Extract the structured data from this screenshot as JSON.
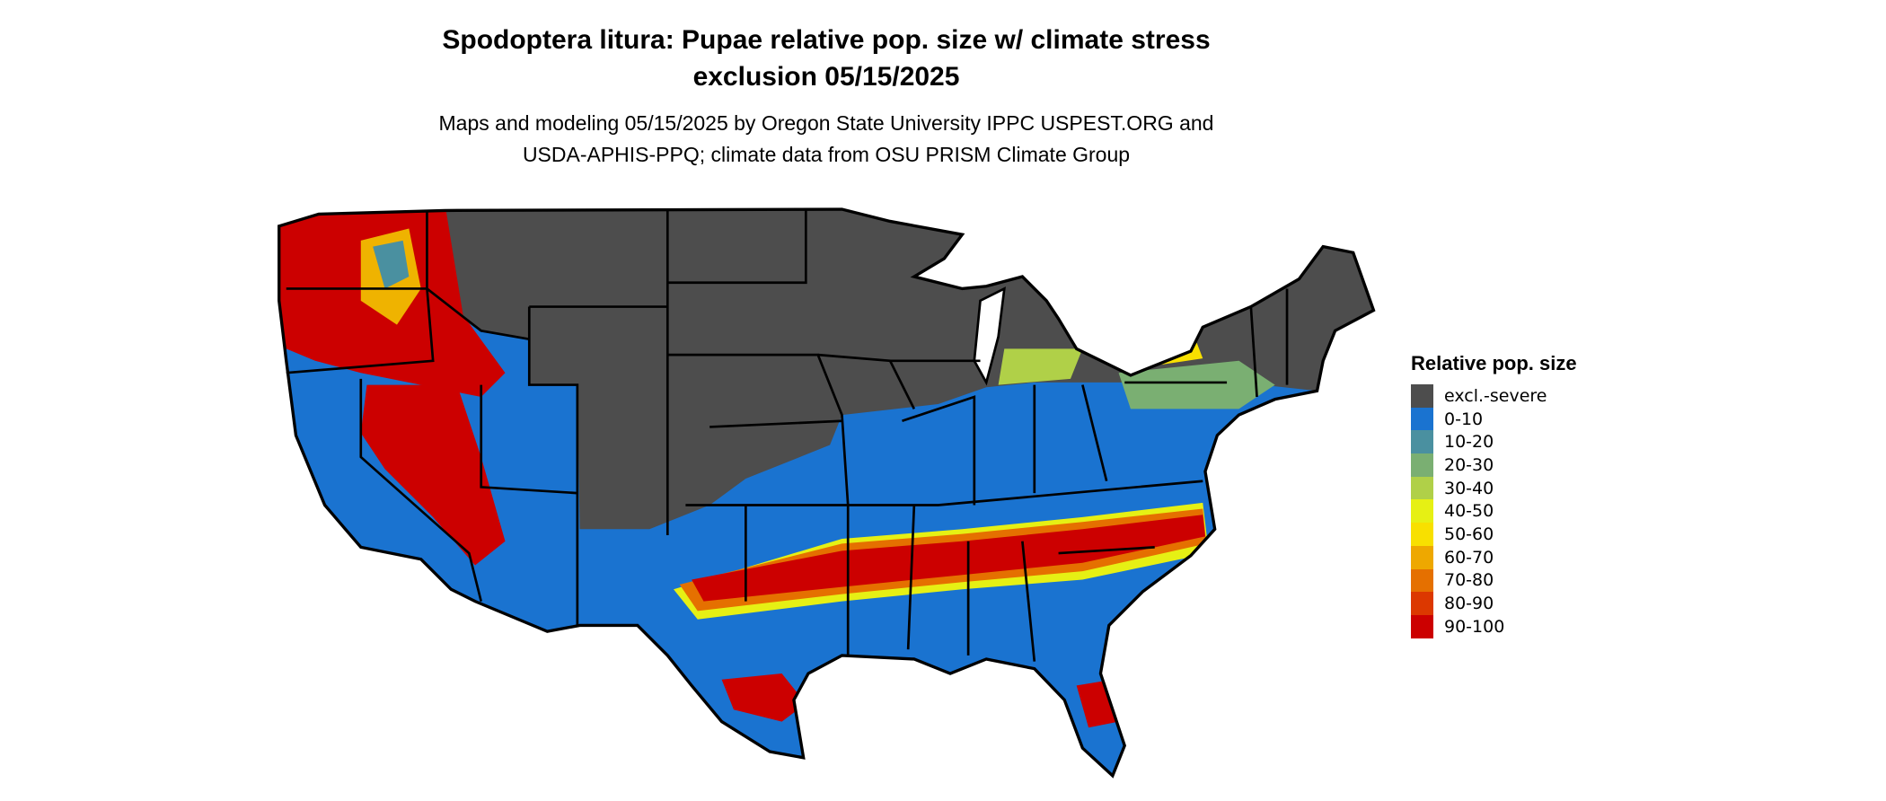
{
  "header": {
    "title_line1": "Spodoptera litura: Pupae relative pop. size w/ climate stress",
    "title_line2": "exclusion 05/15/2025",
    "subtitle_line1": "Maps and modeling 05/15/2025 by Oregon State University IPPC USPEST.ORG and",
    "subtitle_line2": "USDA-APHIS-PPQ; climate data from OSU PRISM Climate Group"
  },
  "legend": {
    "title": "Relative pop. size",
    "items": [
      {
        "label": "excl.-severe",
        "color": "#4d4d4d"
      },
      {
        "label": "0-10",
        "color": "#1a73d0"
      },
      {
        "label": "10-20",
        "color": "#4a90a0"
      },
      {
        "label": "20-30",
        "color": "#7aaf72"
      },
      {
        "label": "30-40",
        "color": "#b0d048"
      },
      {
        "label": "40-50",
        "color": "#e6f014"
      },
      {
        "label": "50-60",
        "color": "#f8e000"
      },
      {
        "label": "60-70",
        "color": "#eea800"
      },
      {
        "label": "70-80",
        "color": "#e57000"
      },
      {
        "label": "80-90",
        "color": "#dc3800"
      },
      {
        "label": "90-100",
        "color": "#cc0000"
      }
    ]
  }
}
